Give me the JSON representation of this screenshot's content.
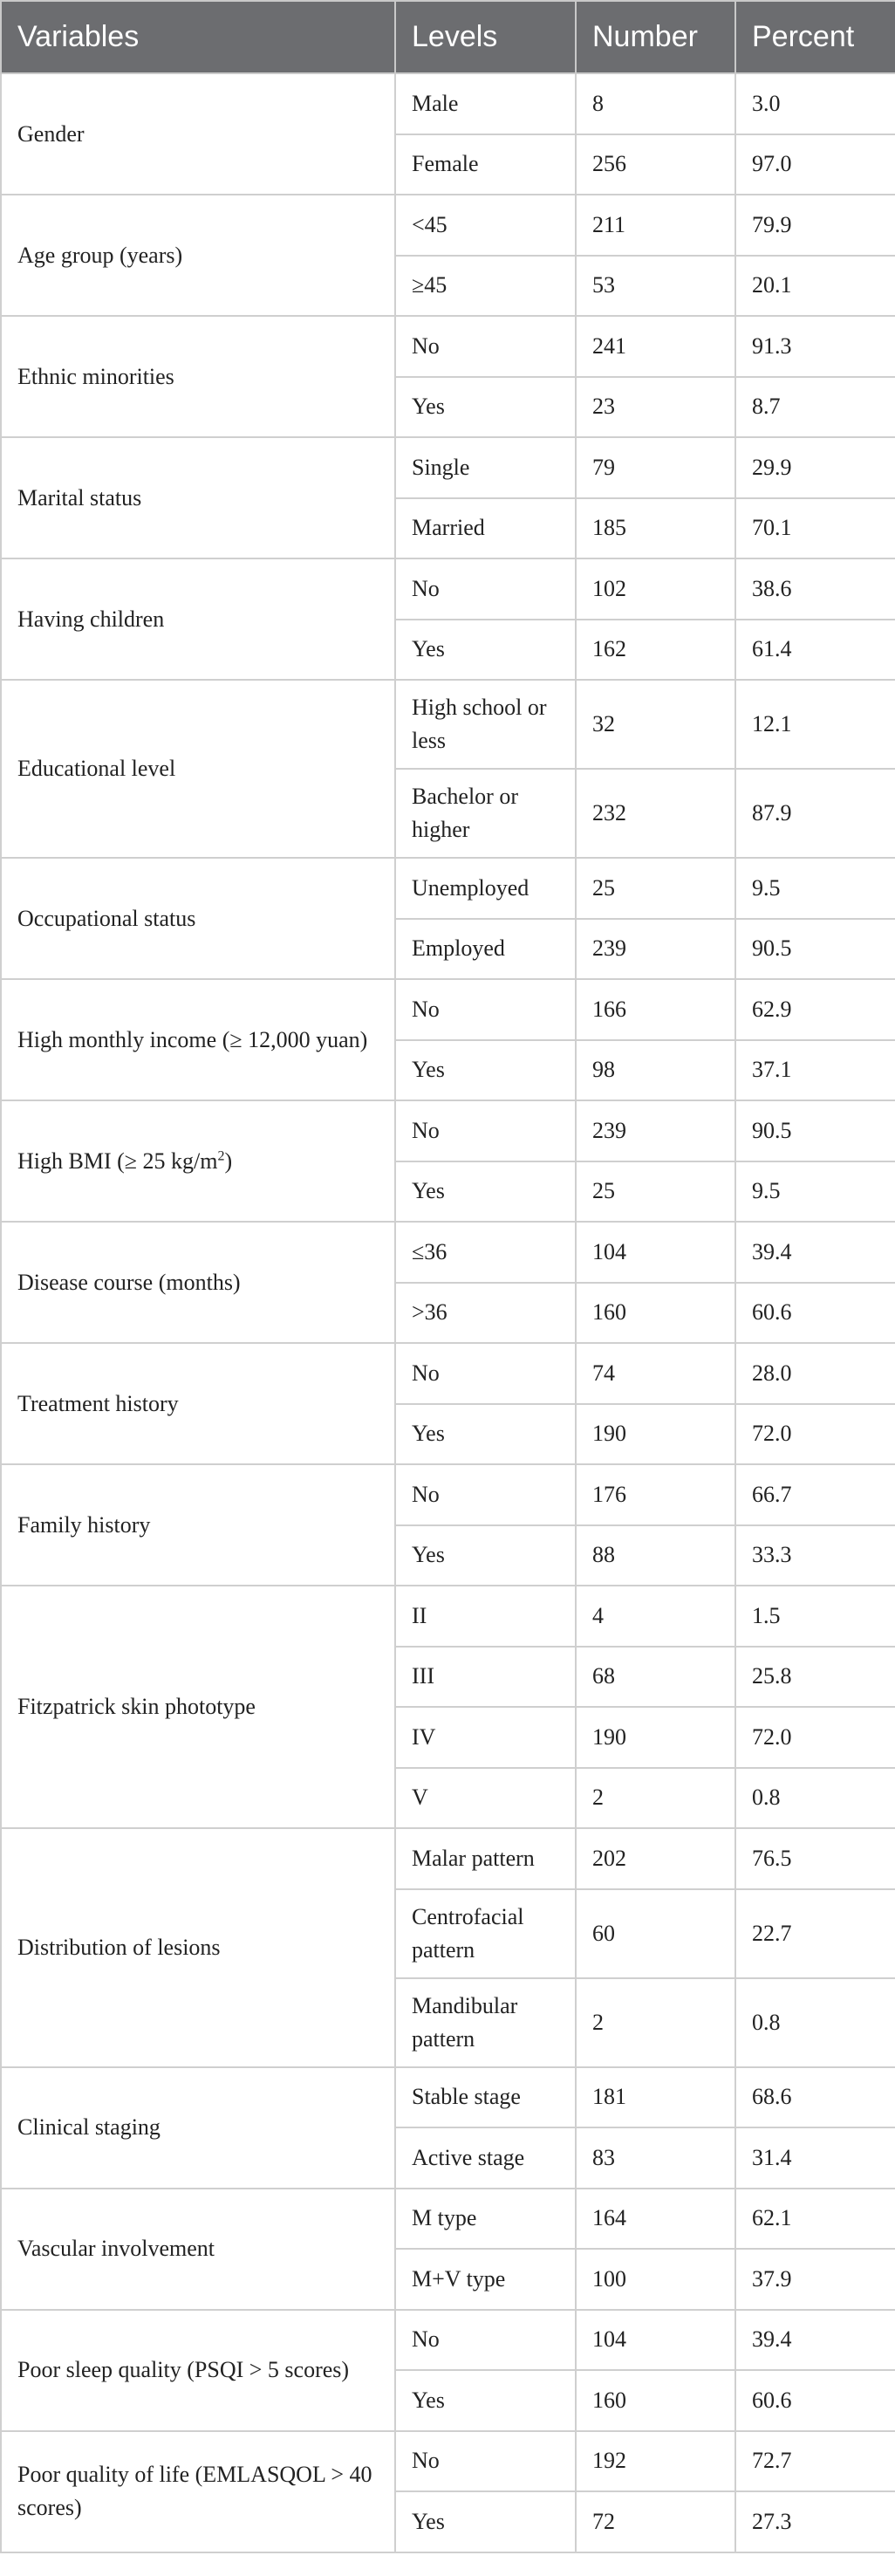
{
  "table": {
    "header": [
      "Variables",
      "Levels",
      "Number",
      "Percent"
    ],
    "groups": [
      {
        "variable": "Gender",
        "rows": [
          [
            "Male",
            "8",
            "3.0"
          ],
          [
            "Female",
            "256",
            "97.0"
          ]
        ]
      },
      {
        "variable": "Age group (years)",
        "rows": [
          [
            "<45",
            "211",
            "79.9"
          ],
          [
            "≥45",
            "53",
            "20.1"
          ]
        ]
      },
      {
        "variable": "Ethnic minorities",
        "rows": [
          [
            "No",
            "241",
            "91.3"
          ],
          [
            "Yes",
            "23",
            "8.7"
          ]
        ]
      },
      {
        "variable": "Marital status",
        "rows": [
          [
            "Single",
            "79",
            "29.9"
          ],
          [
            "Married",
            "185",
            "70.1"
          ]
        ]
      },
      {
        "variable": "Having children",
        "rows": [
          [
            "No",
            "102",
            "38.6"
          ],
          [
            "Yes",
            "162",
            "61.4"
          ]
        ]
      },
      {
        "variable": "Educational level",
        "rows": [
          [
            "High school or less",
            "32",
            "12.1"
          ],
          [
            "Bachelor or higher",
            "232",
            "87.9"
          ]
        ]
      },
      {
        "variable": "Occupational status",
        "rows": [
          [
            "Unemployed",
            "25",
            "9.5"
          ],
          [
            "Employed",
            "239",
            "90.5"
          ]
        ]
      },
      {
        "variable": "High monthly income (≥ 12,000 yuan)",
        "rows": [
          [
            "No",
            "166",
            "62.9"
          ],
          [
            "Yes",
            "98",
            "37.1"
          ]
        ]
      },
      {
        "variable": [
          {
            "text": "High BMI (≥ 25 kg/m"
          },
          {
            "sup": "2"
          },
          {
            "text": ")"
          }
        ],
        "rows": [
          [
            "No",
            "239",
            "90.5"
          ],
          [
            "Yes",
            "25",
            "9.5"
          ]
        ]
      },
      {
        "variable": "Disease course (months)",
        "rows": [
          [
            "≤36",
            "104",
            "39.4"
          ],
          [
            ">36",
            "160",
            "60.6"
          ]
        ]
      },
      {
        "variable": "Treatment history",
        "rows": [
          [
            "No",
            "74",
            "28.0"
          ],
          [
            "Yes",
            "190",
            "72.0"
          ]
        ]
      },
      {
        "variable": "Family history",
        "rows": [
          [
            "No",
            "176",
            "66.7"
          ],
          [
            "Yes",
            "88",
            "33.3"
          ]
        ]
      },
      {
        "variable": "Fitzpatrick skin phototype",
        "rows": [
          [
            "II",
            "4",
            "1.5"
          ],
          [
            "III",
            "68",
            "25.8"
          ],
          [
            "IV",
            "190",
            "72.0"
          ],
          [
            "V",
            "2",
            "0.8"
          ]
        ]
      },
      {
        "variable": "Distribution of lesions",
        "rows": [
          [
            "Malar pattern",
            "202",
            "76.5"
          ],
          [
            "Centrofacial pattern",
            "60",
            "22.7"
          ],
          [
            "Mandibular pattern",
            "2",
            "0.8"
          ]
        ]
      },
      {
        "variable": "Clinical staging",
        "rows": [
          [
            "Stable stage",
            "181",
            "68.6"
          ],
          [
            "Active stage",
            "83",
            "31.4"
          ]
        ]
      },
      {
        "variable": "Vascular involvement",
        "rows": [
          [
            "M type",
            "164",
            "62.1"
          ],
          [
            "M+V type",
            "100",
            "37.9"
          ]
        ]
      },
      {
        "variable": "Poor sleep quality (PSQI > 5 scores)",
        "rows": [
          [
            "No",
            "104",
            "39.4"
          ],
          [
            "Yes",
            "160",
            "60.6"
          ]
        ]
      },
      {
        "variable": "Poor quality of life (EMLASQOL > 40 scores)",
        "rows": [
          [
            "No",
            "192",
            "72.7"
          ],
          [
            "Yes",
            "72",
            "27.3"
          ]
        ]
      }
    ]
  }
}
